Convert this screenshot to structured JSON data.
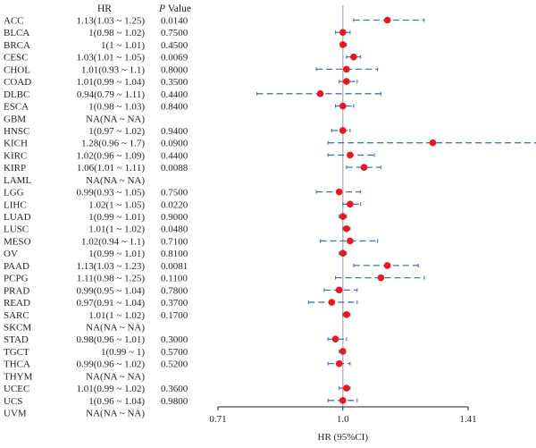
{
  "chart_data": {
    "type": "forest",
    "headers": {
      "hr": "HR",
      "p_italic": "P",
      "p_rest": " Value"
    },
    "xlabel": "HR (95%CI)",
    "x_ticks": [
      {
        "value": 0.71,
        "label": "0.71"
      },
      {
        "value": 1.0,
        "label": "1.0"
      },
      {
        "value": 1.41,
        "label": "1.41"
      }
    ],
    "x_scale": "log",
    "xlim": [
      0.71,
      1.41
    ],
    "reference_line": 1.0,
    "colors": {
      "point": "#e41a1c",
      "ci": "#4472c4",
      "reference": "#c6a9d6",
      "axis": "#231f20"
    },
    "rows": [
      {
        "label": "ACC",
        "hr_text": "1.13(1.03 ~ 1.25)",
        "p": "0.0140",
        "hr": 1.13,
        "lo": 1.03,
        "hi": 1.25
      },
      {
        "label": "BLCA",
        "hr_text": "1(0.98 ~ 1.02)",
        "p": "0.7500",
        "hr": 1.0,
        "lo": 0.98,
        "hi": 1.02
      },
      {
        "label": "BRCA",
        "hr_text": "1(1 ~ 1.01)",
        "p": "0.4500",
        "hr": 1.0,
        "lo": 1.0,
        "hi": 1.01
      },
      {
        "label": "CESC",
        "hr_text": "1.03(1.01 ~ 1.05)",
        "p": "0.0069",
        "hr": 1.03,
        "lo": 1.01,
        "hi": 1.05
      },
      {
        "label": "CHOL",
        "hr_text": "1.01(0.93 ~ 1.1)",
        "p": "0.8000",
        "hr": 1.01,
        "lo": 0.93,
        "hi": 1.1
      },
      {
        "label": "COAD",
        "hr_text": "1.01(0.99 ~ 1.04)",
        "p": "0.3500",
        "hr": 1.01,
        "lo": 0.99,
        "hi": 1.04
      },
      {
        "label": "DLBC",
        "hr_text": "0.94(0.79 ~ 1.11)",
        "p": "0.4400",
        "hr": 0.94,
        "lo": 0.79,
        "hi": 1.11
      },
      {
        "label": "ESCA",
        "hr_text": "1(0.98 ~ 1.03)",
        "p": "0.8400",
        "hr": 1.0,
        "lo": 0.98,
        "hi": 1.03
      },
      {
        "label": "GBM",
        "hr_text": "NA(NA ~ NA)",
        "p": "",
        "hr": null,
        "lo": null,
        "hi": null
      },
      {
        "label": "HNSC",
        "hr_text": "1(0.97 ~ 1.02)",
        "p": "0.9400",
        "hr": 1.0,
        "lo": 0.97,
        "hi": 1.02
      },
      {
        "label": "KICH",
        "hr_text": "1.28(0.96 ~ 1.7)",
        "p": "0.0900",
        "hr": 1.28,
        "lo": 0.96,
        "hi": 1.7
      },
      {
        "label": "KIRC",
        "hr_text": "1.02(0.96 ~ 1.09)",
        "p": "0.4400",
        "hr": 1.02,
        "lo": 0.96,
        "hi": 1.09
      },
      {
        "label": "KIRP",
        "hr_text": "1.06(1.01 ~ 1.11)",
        "p": "0.0088",
        "hr": 1.06,
        "lo": 1.01,
        "hi": 1.11
      },
      {
        "label": "LAML",
        "hr_text": "NA(NA ~ NA)",
        "p": "",
        "hr": null,
        "lo": null,
        "hi": null
      },
      {
        "label": "LGG",
        "hr_text": "0.99(0.93 ~ 1.05)",
        "p": "0.7500",
        "hr": 0.99,
        "lo": 0.93,
        "hi": 1.05
      },
      {
        "label": "LIHC",
        "hr_text": "1.02(1 ~ 1.05)",
        "p": "0.0220",
        "hr": 1.02,
        "lo": 1.0,
        "hi": 1.05
      },
      {
        "label": "LUAD",
        "hr_text": "1(0.99 ~ 1.01)",
        "p": "0.9000",
        "hr": 1.0,
        "lo": 0.99,
        "hi": 1.01
      },
      {
        "label": "LUSC",
        "hr_text": "1.01(1 ~ 1.02)",
        "p": "0.0480",
        "hr": 1.01,
        "lo": 1.0,
        "hi": 1.02
      },
      {
        "label": "MESO",
        "hr_text": "1.02(0.94 ~ 1.1)",
        "p": "0.7100",
        "hr": 1.02,
        "lo": 0.94,
        "hi": 1.1
      },
      {
        "label": "OV",
        "hr_text": "1(0.99 ~ 1.01)",
        "p": "0.8100",
        "hr": 1.0,
        "lo": 0.99,
        "hi": 1.01
      },
      {
        "label": "PAAD",
        "hr_text": "1.13(1.03 ~ 1.23)",
        "p": "0.0081",
        "hr": 1.13,
        "lo": 1.03,
        "hi": 1.23
      },
      {
        "label": "PCPG",
        "hr_text": "1.11(0.98 ~ 1.25)",
        "p": "0.1100",
        "hr": 1.11,
        "lo": 0.98,
        "hi": 1.25
      },
      {
        "label": "PRAD",
        "hr_text": "0.99(0.95 ~ 1.04)",
        "p": "0.7800",
        "hr": 0.99,
        "lo": 0.95,
        "hi": 1.04
      },
      {
        "label": "READ",
        "hr_text": "0.97(0.91 ~ 1.04)",
        "p": "0.3700",
        "hr": 0.97,
        "lo": 0.91,
        "hi": 1.04
      },
      {
        "label": "SARC",
        "hr_text": "1.01(1 ~ 1.02)",
        "p": "0.1700",
        "hr": 1.01,
        "lo": 1.0,
        "hi": 1.02
      },
      {
        "label": "SKCM",
        "hr_text": "NA(NA ~ NA)",
        "p": "",
        "hr": null,
        "lo": null,
        "hi": null
      },
      {
        "label": "STAD",
        "hr_text": "0.98(0.96 ~ 1.01)",
        "p": "0.3000",
        "hr": 0.98,
        "lo": 0.96,
        "hi": 1.01
      },
      {
        "label": "TGCT",
        "hr_text": "1(0.99 ~ 1)",
        "p": "0.5700",
        "hr": 1.0,
        "lo": 0.99,
        "hi": 1.0
      },
      {
        "label": "THCA",
        "hr_text": "0.99(0.96 ~ 1.02)",
        "p": "0.5200",
        "hr": 0.99,
        "lo": 0.96,
        "hi": 1.02
      },
      {
        "label": "THYM",
        "hr_text": "NA(NA ~ NA)",
        "p": "",
        "hr": null,
        "lo": null,
        "hi": null
      },
      {
        "label": "UCEC",
        "hr_text": "1.01(0.99 ~ 1.02)",
        "p": "0.3600",
        "hr": 1.01,
        "lo": 0.99,
        "hi": 1.02
      },
      {
        "label": "UCS",
        "hr_text": "1(0.96 ~ 1.04)",
        "p": "0.9800",
        "hr": 1.0,
        "lo": 0.96,
        "hi": 1.04
      },
      {
        "label": "UVM",
        "hr_text": "NA(NA ~ NA)",
        "p": "",
        "hr": null,
        "lo": null,
        "hi": null
      }
    ]
  }
}
